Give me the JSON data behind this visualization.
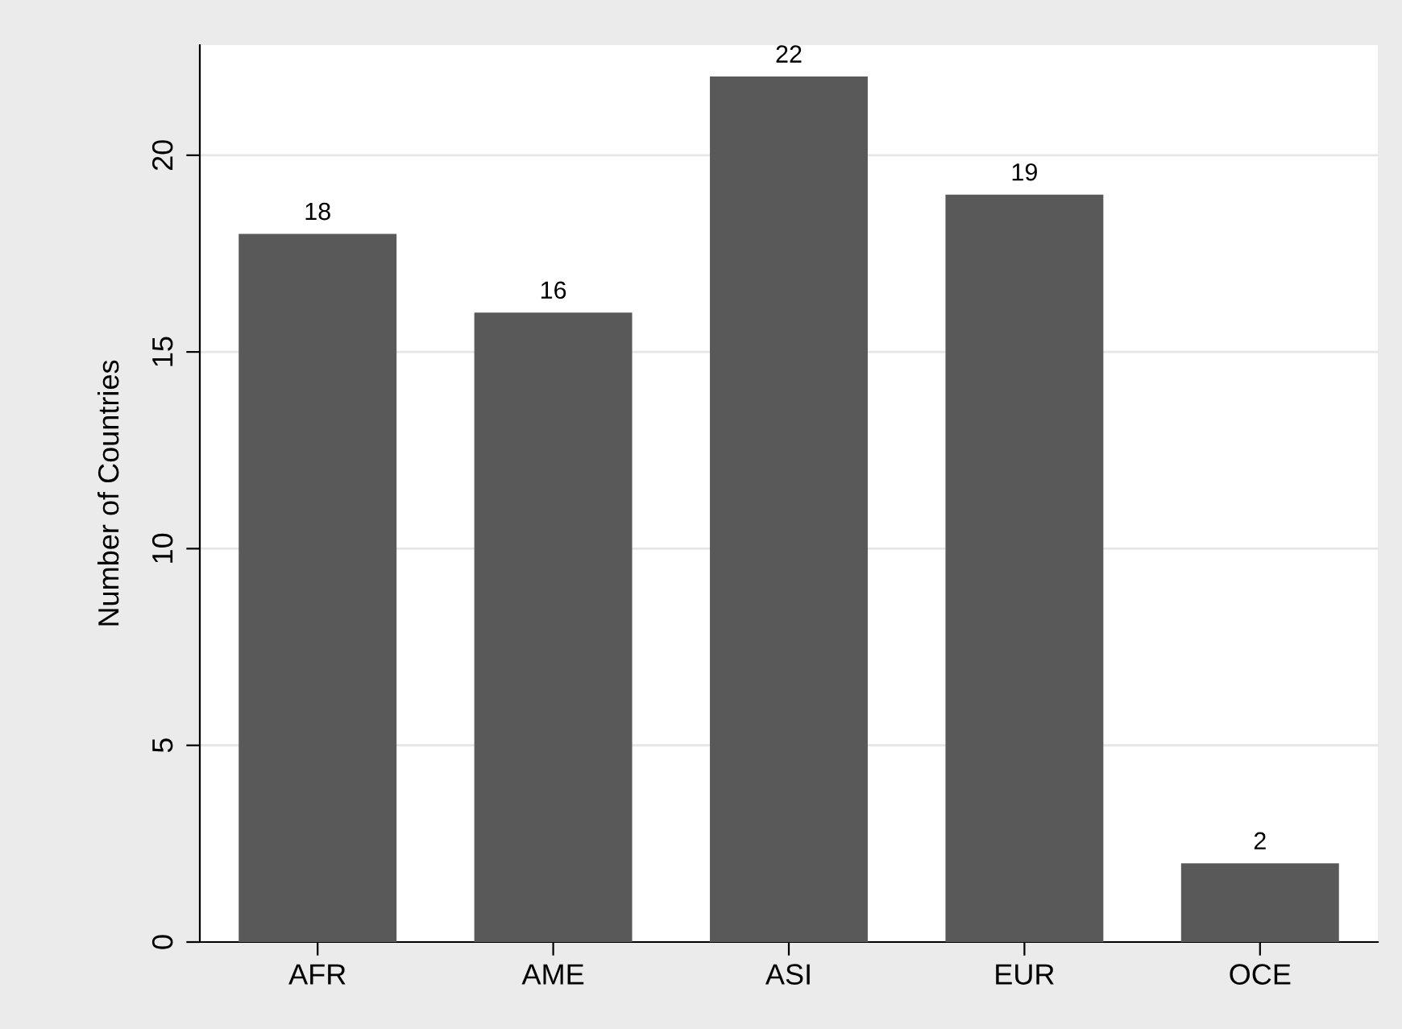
{
  "chart_data": {
    "type": "bar",
    "ylabel": "Number of Countries",
    "categories": [
      "AFR",
      "AME",
      "ASI",
      "EUR",
      "OCE"
    ],
    "values": [
      18,
      16,
      22,
      19,
      2
    ],
    "color": "#595959",
    "ylim": [
      0,
      22.8
    ],
    "yticks": [
      0,
      5,
      10,
      15,
      20
    ],
    "grid": "y",
    "data_labels": true,
    "legend": false
  }
}
